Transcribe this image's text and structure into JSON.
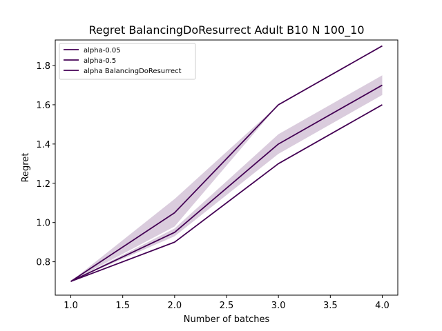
{
  "chart_data": {
    "type": "line",
    "title": "Regret BalancingDoResurrect Adult B10 N 100_10",
    "xlabel": "Number of batches",
    "ylabel": "Regret",
    "xlim": [
      0.85,
      4.15
    ],
    "ylim": [
      0.63,
      1.93
    ],
    "xticks": [
      1.0,
      1.5,
      2.0,
      2.5,
      3.0,
      3.5,
      4.0
    ],
    "xtick_labels": [
      "1.0",
      "1.5",
      "2.0",
      "2.5",
      "3.0",
      "3.5",
      "4.0"
    ],
    "yticks": [
      0.8,
      1.0,
      1.2,
      1.4,
      1.6,
      1.8
    ],
    "ytick_labels": [
      "0.8",
      "1.0",
      "1.2",
      "1.4",
      "1.6",
      "1.8"
    ],
    "grid": false,
    "legend_position": "top-left",
    "x": [
      1,
      2,
      3,
      4
    ],
    "series": [
      {
        "name": "alpha-0.05",
        "values": [
          0.7,
          1.05,
          1.6,
          1.9
        ],
        "band_low": [
          0.7,
          0.98,
          1.6,
          1.9
        ],
        "band_high": [
          0.7,
          1.12,
          1.6,
          1.9
        ],
        "color": "#440154"
      },
      {
        "name": "alpha-0.5",
        "values": [
          0.7,
          0.95,
          1.4,
          1.7
        ],
        "band_low": [
          0.7,
          0.93,
          1.35,
          1.65
        ],
        "band_high": [
          0.7,
          0.97,
          1.45,
          1.75
        ],
        "color": "#440154"
      },
      {
        "name": "alpha BalancingDoResurrect",
        "values": [
          0.7,
          0.9,
          1.3,
          1.6
        ],
        "color": "#440154"
      }
    ],
    "band_color": "#440154",
    "band_opacity": 0.2
  }
}
